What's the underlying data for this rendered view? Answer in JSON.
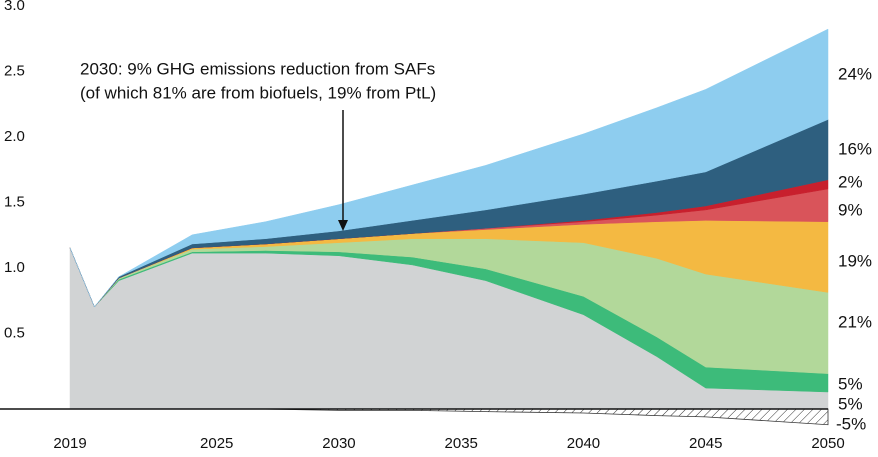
{
  "chart_data": {
    "type": "stacked_area",
    "x": [
      2019,
      2020,
      2021,
      2024,
      2027,
      2030,
      2033,
      2036,
      2040,
      2043,
      2045,
      2050
    ],
    "xlim": [
      2019,
      2050
    ],
    "xticks": [
      2019,
      2025,
      2030,
      2035,
      2040,
      2045,
      2050
    ],
    "ylim": [
      -0.16,
      3.0
    ],
    "yticks": [
      0.5,
      {
        "value": 1,
        "label": "1.0"
      },
      1.5,
      {
        "value": 2,
        "label": "2.0"
      },
      2.5,
      {
        "value": 3,
        "label": "3.0"
      }
    ],
    "grid": true,
    "series": [
      {
        "color": "#d1d3d4",
        "label": "5%",
        "values": [
          1.23,
          0.78,
          0.98,
          1.19,
          1.19,
          1.17,
          1.1,
          0.98,
          0.72,
          0.4,
          0.16,
          0.13
        ]
      },
      {
        "color": "#3dbb7a",
        "label": "5%",
        "values": [
          0,
          0,
          0.01,
          0.01,
          0.02,
          0.03,
          0.06,
          0.09,
          0.14,
          0.15,
          0.16,
          0.14
        ]
      },
      {
        "color": "#b2d89a",
        "label": "21%",
        "values": [
          0,
          0,
          0.01,
          0.02,
          0.03,
          0.07,
          0.14,
          0.23,
          0.41,
          0.6,
          0.71,
          0.62
        ]
      },
      {
        "color": "#f4b942",
        "label": "19%",
        "values": [
          0,
          0,
          0,
          0.01,
          0.02,
          0.03,
          0.04,
          0.07,
          0.14,
          0.28,
          0.41,
          0.54
        ]
      },
      {
        "color": "#d9545a",
        "label": "9%",
        "values": [
          0,
          0,
          0,
          0,
          0,
          0,
          0,
          0.01,
          0.02,
          0.05,
          0.08,
          0.25
        ]
      },
      {
        "color": "#c8202d",
        "label": "2%",
        "values": [
          0,
          0,
          0,
          0,
          0,
          0,
          0,
          0,
          0.01,
          0.02,
          0.03,
          0.07
        ]
      },
      {
        "color": "#2e5f7f",
        "label": "16%",
        "values": [
          0,
          0,
          0.01,
          0.03,
          0.04,
          0.06,
          0.1,
          0.14,
          0.2,
          0.24,
          0.26,
          0.46
        ]
      },
      {
        "color": "#8ecdef",
        "label": "24%",
        "values": [
          0,
          0,
          0,
          0.07,
          0.13,
          0.2,
          0.27,
          0.34,
          0.46,
          0.56,
          0.63,
          0.69
        ]
      }
    ],
    "negative_series": {
      "label": "-5%",
      "values": [
        0,
        0,
        0,
        0,
        0,
        -0.01,
        -0.01,
        -0.02,
        -0.03,
        -0.05,
        -0.06,
        -0.12
      ]
    },
    "annotation": [
      "2030: 9% GHG emissions reduction from SAFs",
      "(of which 81% are from biofuels, 19% from PtL)"
    ]
  }
}
